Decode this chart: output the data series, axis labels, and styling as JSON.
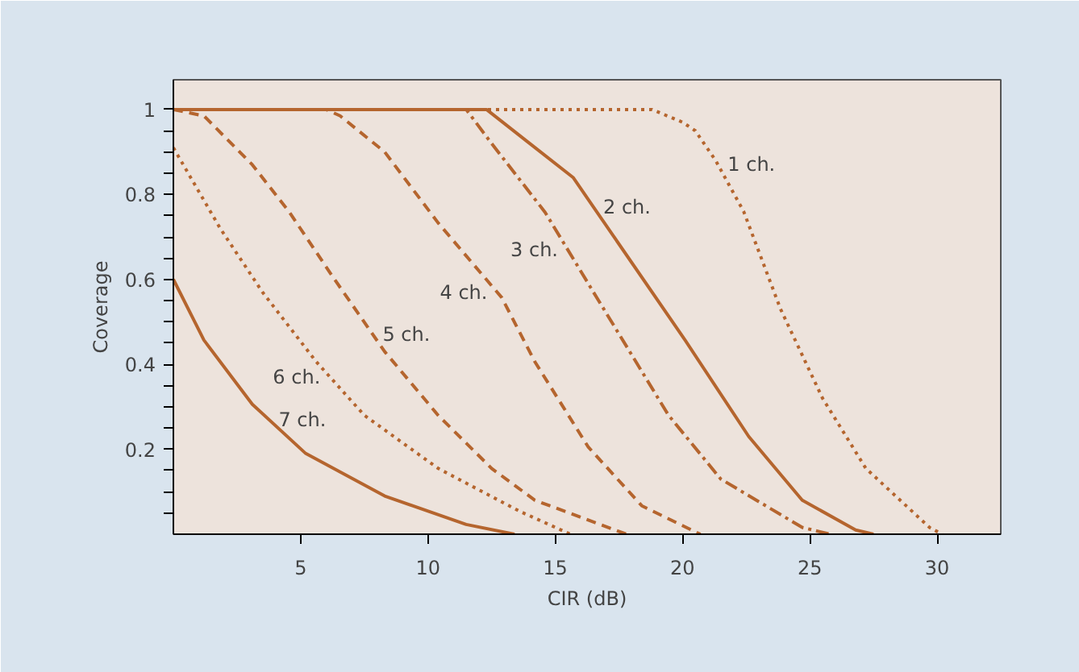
{
  "chart_data": {
    "type": "line",
    "xlabel": "CIR (dB)",
    "ylabel": "Coverage",
    "xlim": [
      0,
      32.5
    ],
    "ylim": [
      0,
      1.07
    ],
    "xticks": [
      5,
      10,
      15,
      20,
      25,
      30
    ],
    "yticks": [
      {
        "value": 0.05,
        "label": null
      },
      {
        "value": 0.1,
        "label": null
      },
      {
        "value": 0.15,
        "label": null
      },
      0.2,
      {
        "value": 0.25,
        "label": null
      },
      {
        "value": 0.3,
        "label": null
      },
      {
        "value": 0.35,
        "label": null
      },
      0.4,
      {
        "value": 0.45,
        "label": null
      },
      {
        "value": 0.5,
        "label": null
      },
      {
        "value": 0.55,
        "label": null
      },
      0.6,
      {
        "value": 0.65,
        "label": null
      },
      {
        "value": 0.7,
        "label": null
      },
      {
        "value": 0.75,
        "label": null
      },
      0.8,
      {
        "value": 0.85,
        "label": null
      },
      {
        "value": 0.9,
        "label": null
      },
      {
        "value": 0.95,
        "label": null
      },
      1
    ],
    "grid": false,
    "marker": "none",
    "series": [
      {
        "name": "1 ch.",
        "color": "#b5652e",
        "line_style": "dotted",
        "x": [
          0,
          18.8,
          20,
          20.5,
          21.3,
          22.4,
          23.85,
          25.5,
          27.2,
          29.7,
          30.2
        ],
        "values": [
          1,
          1,
          0.97,
          0.95,
          0.88,
          0.76,
          0.53,
          0.32,
          0.155,
          0.016,
          0
        ]
      },
      {
        "name": "2 ch.",
        "color": "#b5652e",
        "line_style": "solid",
        "x": [
          0,
          12.3,
          14,
          15.7,
          20.1,
          22.6,
          24.7,
          26.8,
          27.5
        ],
        "values": [
          1,
          1,
          0.92,
          0.84,
          0.457,
          0.23,
          0.08,
          0.01,
          0
        ]
      },
      {
        "name": "3 ch.",
        "color": "#b5652e",
        "line_style": "dashdot",
        "x": [
          0,
          11.5,
          12.5,
          14.6,
          16.5,
          19.45,
          21.5,
          24.7,
          25.8
        ],
        "values": [
          1,
          1,
          0.92,
          0.758,
          0.57,
          0.28,
          0.13,
          0.016,
          0
        ]
      },
      {
        "name": "4 ch.",
        "color": "#b5652e",
        "line_style": "dashed",
        "x": [
          0,
          6,
          6.55,
          8.3,
          10.4,
          12.9,
          14.2,
          16.3,
          18.4,
          20.7
        ],
        "values": [
          1,
          1,
          0.985,
          0.9,
          0.733,
          0.557,
          0.406,
          0.205,
          0.067,
          0
        ]
      },
      {
        "name": "5 ch.",
        "color": "#b5652e",
        "line_style": "dashed",
        "x": [
          0,
          1.2,
          3.1,
          4.56,
          6.24,
          8.3,
          10.4,
          12.5,
          14.2,
          17.8
        ],
        "values": [
          1,
          0.985,
          0.87,
          0.758,
          0.608,
          0.43,
          0.28,
          0.155,
          0.08,
          0
        ]
      },
      {
        "name": "6 ch.",
        "color": "#b5652e",
        "line_style": "dotted",
        "x": [
          0,
          1.84,
          3.5,
          5.6,
          7.5,
          10.4,
          13.6,
          15.6
        ],
        "values": [
          0.91,
          0.72,
          0.57,
          0.407,
          0.28,
          0.155,
          0.054,
          0
        ]
      },
      {
        "name": "7 ch.",
        "color": "#b5652e",
        "line_style": "solid",
        "x": [
          0,
          1.2,
          3.1,
          5.2,
          8.3,
          11.5,
          13.4
        ],
        "values": [
          0.6,
          0.457,
          0.306,
          0.19,
          0.09,
          0.023,
          0
        ]
      }
    ]
  }
}
